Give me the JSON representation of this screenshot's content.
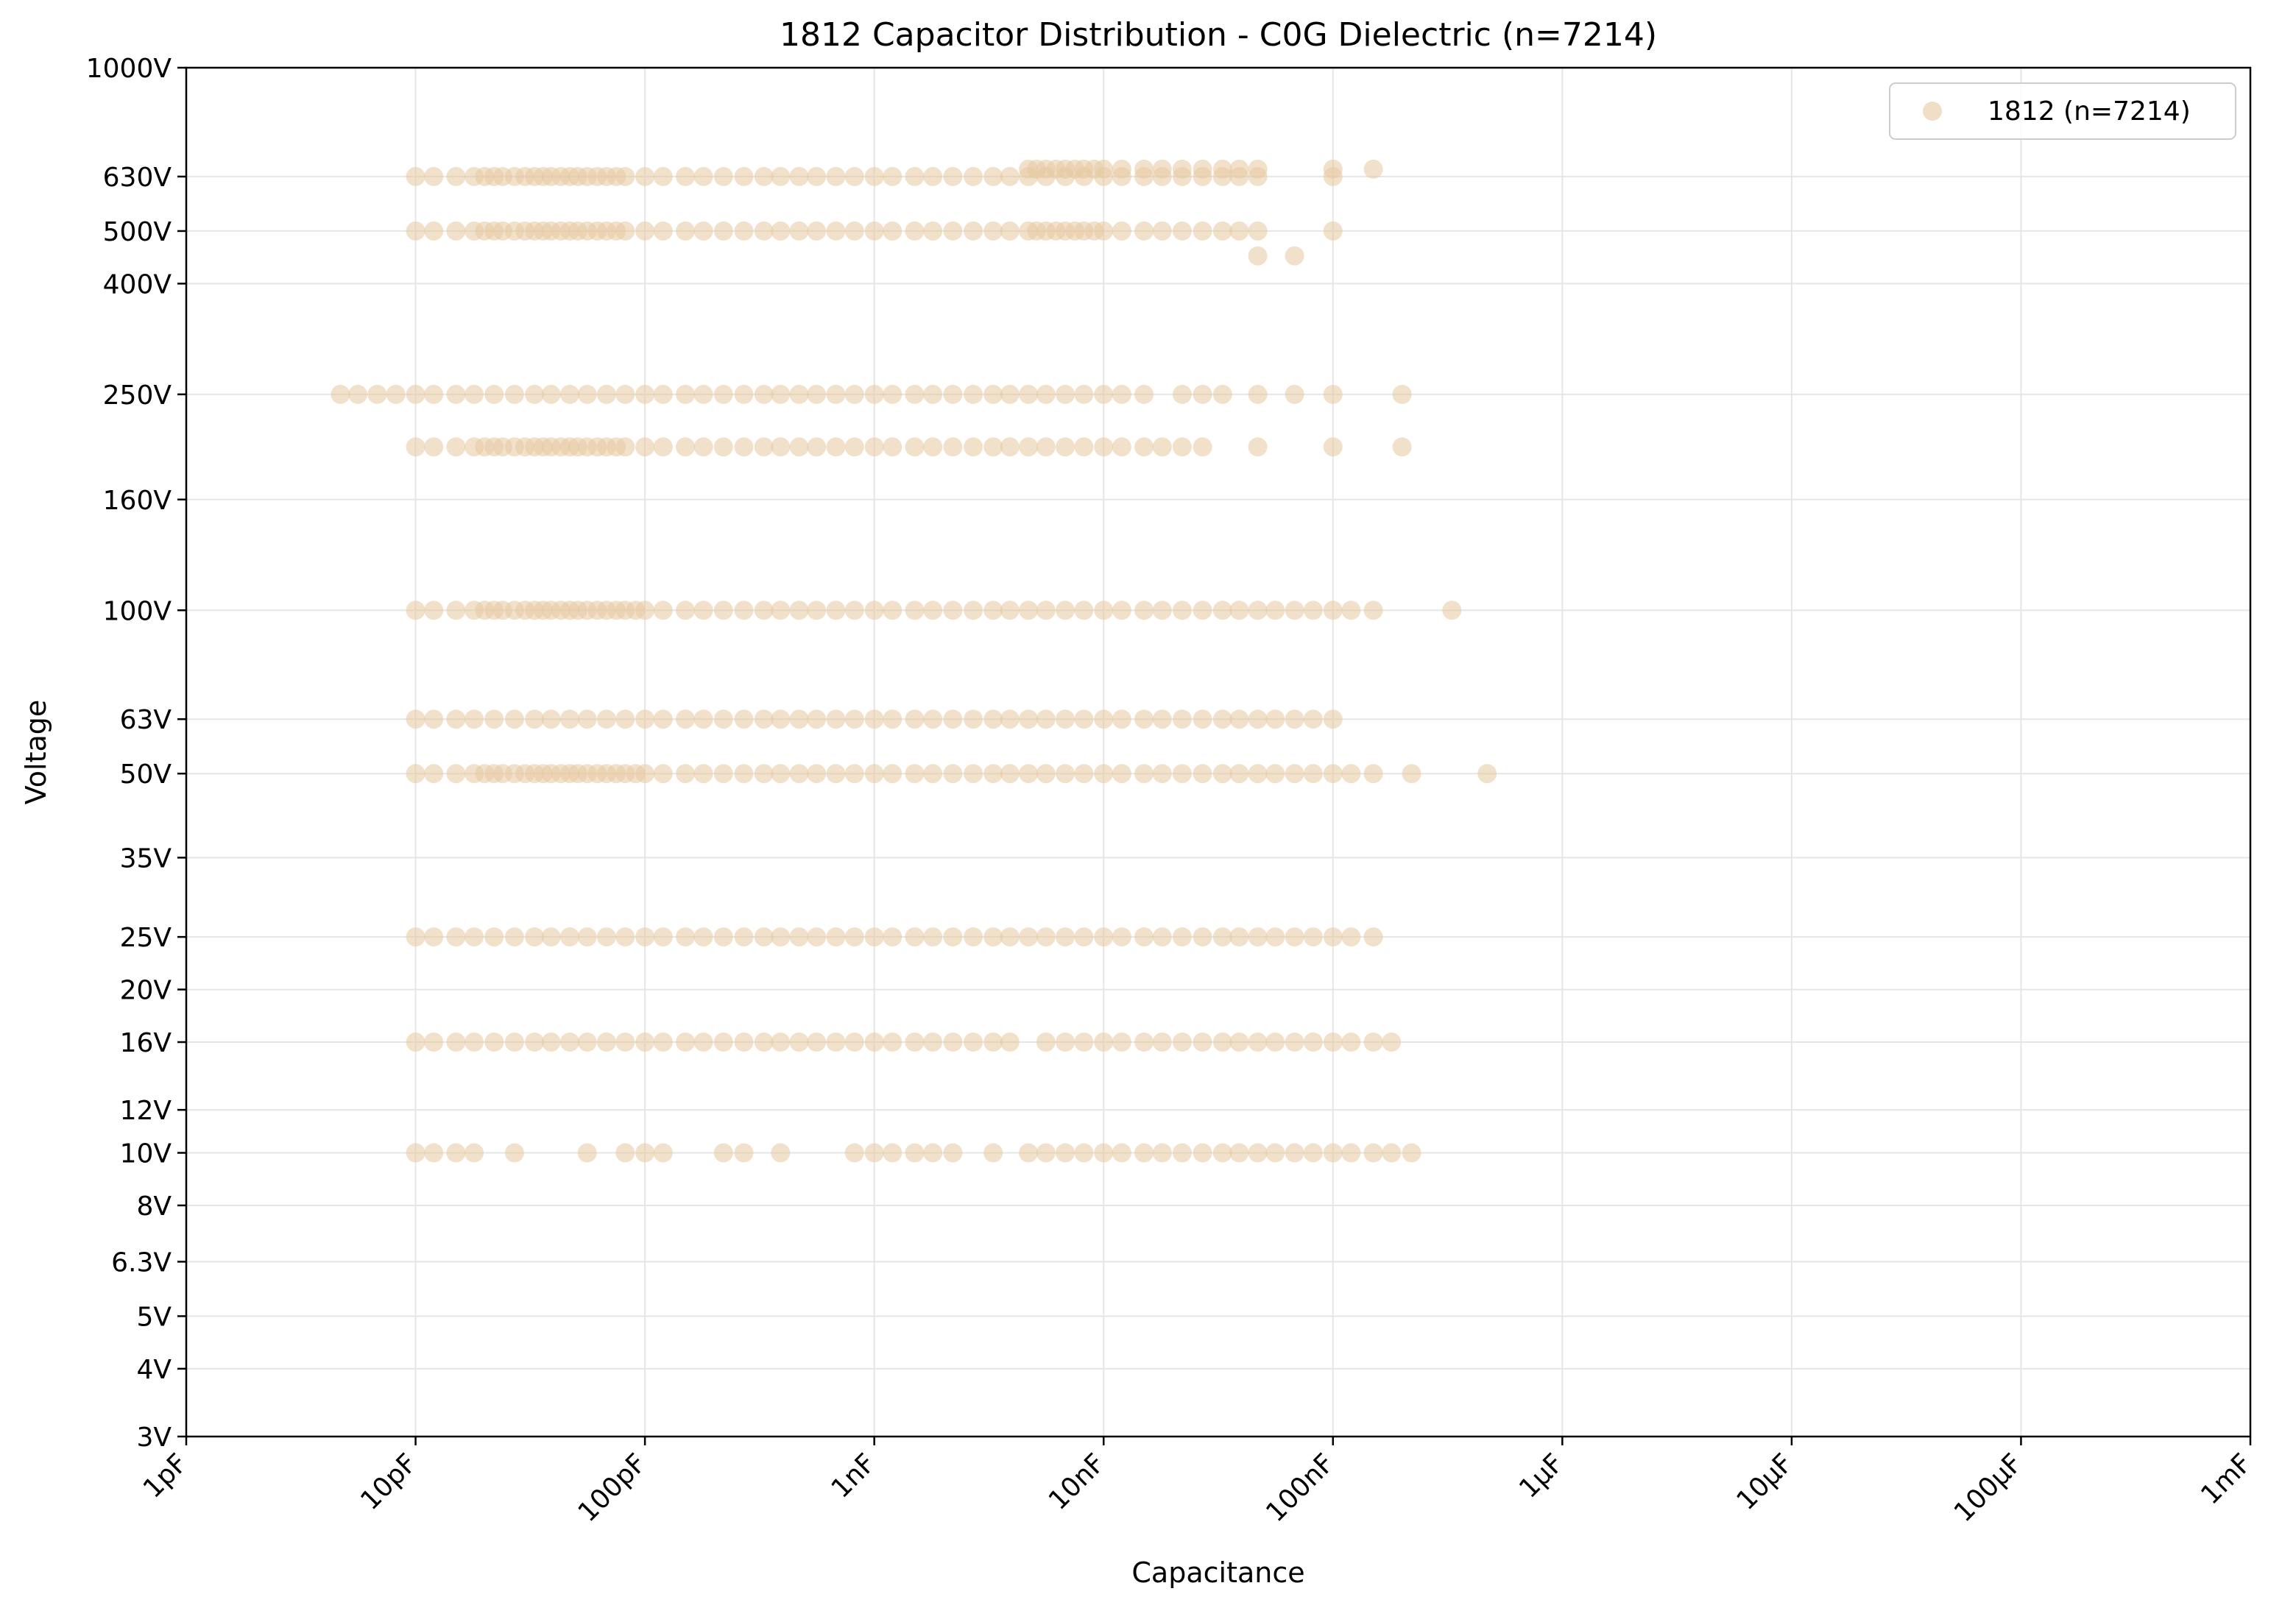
{
  "chart_data": {
    "type": "scatter",
    "title": "1812 Capacitor Distribution - C0G Dielectric (n=7214)",
    "xlabel": "Capacitance",
    "ylabel": "Voltage",
    "x_scale": "log",
    "y_scale": "log",
    "x_unit": "F",
    "xlim": [
      1e-12,
      0.001
    ],
    "ylim": [
      3,
      1000
    ],
    "grid": true,
    "legend_position": "top-right",
    "colors": {
      "series": "#e6c8a0",
      "point_edge": "#e6c8a0",
      "axis": "#000000",
      "grid": "#e6e6e6"
    },
    "x_ticks": [
      {
        "value": 1e-12,
        "label": "1pF"
      },
      {
        "value": 1e-11,
        "label": "10pF"
      },
      {
        "value": 1e-10,
        "label": "100pF"
      },
      {
        "value": 1e-09,
        "label": "1nF"
      },
      {
        "value": 1e-08,
        "label": "10nF"
      },
      {
        "value": 1e-07,
        "label": "100nF"
      },
      {
        "value": 1e-06,
        "label": "1µF"
      },
      {
        "value": 1e-05,
        "label": "10µF"
      },
      {
        "value": 0.0001,
        "label": "100µF"
      },
      {
        "value": 0.001,
        "label": "1mF"
      }
    ],
    "y_ticks": [
      {
        "value": 3,
        "label": "3V"
      },
      {
        "value": 4,
        "label": "4V"
      },
      {
        "value": 5,
        "label": "5V"
      },
      {
        "value": 6.3,
        "label": "6.3V"
      },
      {
        "value": 8,
        "label": "8V"
      },
      {
        "value": 10,
        "label": "10V"
      },
      {
        "value": 12,
        "label": "12V"
      },
      {
        "value": 16,
        "label": "16V"
      },
      {
        "value": 20,
        "label": "20V"
      },
      {
        "value": 25,
        "label": "25V"
      },
      {
        "value": 35,
        "label": "35V"
      },
      {
        "value": 50,
        "label": "50V"
      },
      {
        "value": 63,
        "label": "63V"
      },
      {
        "value": 100,
        "label": "100V"
      },
      {
        "value": 160,
        "label": "160V"
      },
      {
        "value": 250,
        "label": "250V"
      },
      {
        "value": 400,
        "label": "400V"
      },
      {
        "value": 500,
        "label": "500V"
      },
      {
        "value": 630,
        "label": "630V"
      },
      {
        "value": 1000,
        "label": "1000V"
      }
    ],
    "series": [
      {
        "name": "1812 (n=7214)",
        "n": 7214,
        "rows": [
          {
            "voltage": 10,
            "capacitance_pF": [
              10,
              12,
              15,
              18,
              27,
              56,
              82,
              100,
              120,
              220,
              270,
              390,
              820,
              1000,
              1200,
              1500,
              1800,
              2200,
              3300,
              4700,
              5600,
              6800,
              8200,
              10000,
              12000,
              15000,
              18000,
              22000,
              27000,
              33000,
              39000,
              47000,
              56000,
              68000,
              82000,
              100000,
              120000,
              150000,
              180000,
              220000
            ]
          },
          {
            "voltage": 16,
            "capacitance_pF": [
              10,
              12,
              15,
              18,
              22,
              27,
              33,
              39,
              47,
              56,
              68,
              82,
              100,
              120,
              150,
              180,
              220,
              270,
              330,
              390,
              470,
              560,
              680,
              820,
              1000,
              1200,
              1500,
              1800,
              2200,
              2700,
              3300,
              3900,
              5600,
              6800,
              8200,
              10000,
              12000,
              15000,
              18000,
              22000,
              27000,
              33000,
              39000,
              47000,
              56000,
              68000,
              82000,
              100000,
              120000,
              150000,
              180000
            ]
          },
          {
            "voltage": 25,
            "capacitance_pF": [
              10,
              12,
              15,
              18,
              22,
              27,
              33,
              39,
              47,
              56,
              68,
              82,
              100,
              120,
              150,
              180,
              220,
              270,
              330,
              390,
              470,
              560,
              680,
              820,
              1000,
              1200,
              1500,
              1800,
              2200,
              2700,
              3300,
              3900,
              4700,
              5600,
              6800,
              8200,
              10000,
              12000,
              15000,
              18000,
              22000,
              27000,
              33000,
              39000,
              47000,
              56000,
              68000,
              82000,
              100000,
              120000,
              150000
            ]
          },
          {
            "voltage": 50,
            "capacitance_pF": [
              10,
              12,
              15,
              18,
              20,
              22,
              24,
              27,
              30,
              33,
              36,
              39,
              43,
              47,
              51,
              56,
              62,
              68,
              75,
              82,
              91,
              100,
              120,
              150,
              180,
              220,
              270,
              330,
              390,
              470,
              560,
              680,
              820,
              1000,
              1200,
              1500,
              1800,
              2200,
              2700,
              3300,
              3900,
              4700,
              5600,
              6800,
              8200,
              10000,
              12000,
              15000,
              18000,
              22000,
              27000,
              33000,
              39000,
              47000,
              56000,
              68000,
              82000,
              100000,
              120000,
              150000,
              220000,
              470000
            ]
          },
          {
            "voltage": 63,
            "capacitance_pF": [
              10,
              12,
              15,
              18,
              22,
              27,
              33,
              39,
              47,
              56,
              68,
              82,
              100,
              120,
              150,
              180,
              220,
              270,
              330,
              390,
              470,
              560,
              680,
              820,
              1000,
              1200,
              1500,
              1800,
              2200,
              2700,
              3300,
              3900,
              4700,
              5600,
              6800,
              8200,
              10000,
              12000,
              15000,
              18000,
              22000,
              27000,
              33000,
              39000,
              47000,
              56000,
              68000,
              82000,
              100000
            ]
          },
          {
            "voltage": 100,
            "capacitance_pF": [
              10,
              12,
              15,
              18,
              20,
              22,
              24,
              27,
              30,
              33,
              36,
              39,
              43,
              47,
              51,
              56,
              62,
              68,
              75,
              82,
              91,
              100,
              120,
              150,
              180,
              220,
              270,
              330,
              390,
              470,
              560,
              680,
              820,
              1000,
              1200,
              1500,
              1800,
              2200,
              2700,
              3300,
              3900,
              4700,
              5600,
              6800,
              8200,
              10000,
              12000,
              15000,
              18000,
              22000,
              27000,
              33000,
              39000,
              47000,
              56000,
              68000,
              82000,
              100000,
              120000,
              150000,
              330000
            ]
          },
          {
            "voltage": 200,
            "capacitance_pF": [
              10,
              12,
              15,
              18,
              20,
              22,
              24,
              27,
              30,
              33,
              36,
              39,
              43,
              47,
              51,
              56,
              62,
              68,
              75,
              82,
              100,
              120,
              150,
              180,
              220,
              270,
              330,
              390,
              470,
              560,
              680,
              820,
              1000,
              1200,
              1500,
              1800,
              2200,
              2700,
              3300,
              3900,
              4700,
              5600,
              6800,
              8200,
              10000,
              12000,
              15000,
              18000,
              22000,
              27000,
              47000,
              100000,
              200000
            ]
          },
          {
            "voltage": 250,
            "capacitance_pF": [
              4.7,
              5.6,
              6.8,
              8.2,
              10,
              12,
              15,
              18,
              22,
              27,
              33,
              39,
              47,
              56,
              68,
              82,
              100,
              120,
              150,
              180,
              220,
              270,
              330,
              390,
              470,
              560,
              680,
              820,
              1000,
              1200,
              1500,
              1800,
              2200,
              2700,
              3300,
              3900,
              4700,
              5600,
              6800,
              8200,
              10000,
              12000,
              15000,
              22000,
              27000,
              33000,
              47000,
              68000,
              100000,
              200000
            ]
          },
          {
            "voltage": 450,
            "capacitance_pF": [
              47000,
              68000
            ]
          },
          {
            "voltage": 500,
            "capacitance_pF": [
              10,
              12,
              15,
              18,
              20,
              22,
              24,
              27,
              30,
              33,
              36,
              39,
              43,
              47,
              51,
              56,
              62,
              68,
              75,
              82,
              100,
              120,
              150,
              180,
              220,
              270,
              330,
              390,
              470,
              560,
              680,
              820,
              1000,
              1200,
              1500,
              1800,
              2200,
              2700,
              3300,
              3900,
              4700,
              5100,
              5600,
              6200,
              6800,
              7500,
              8200,
              9100,
              10000,
              12000,
              15000,
              18000,
              22000,
              27000,
              33000,
              39000,
              47000,
              100000
            ]
          },
          {
            "voltage": 630,
            "capacitance_pF": [
              10,
              12,
              15,
              18,
              20,
              22,
              24,
              27,
              30,
              33,
              36,
              39,
              43,
              47,
              51,
              56,
              62,
              68,
              75,
              82,
              100,
              120,
              150,
              180,
              220,
              270,
              330,
              390,
              470,
              560,
              680,
              820,
              1000,
              1200,
              1500,
              1800,
              2200,
              2700,
              3300,
              3900,
              4700,
              5600,
              6800,
              8200,
              10000,
              12000,
              15000,
              18000,
              22000,
              27000,
              33000,
              39000,
              47000,
              100000
            ]
          },
          {
            "voltage": 650,
            "capacitance_pF": [
              4700,
              5100,
              5600,
              6200,
              6800,
              7500,
              8200,
              9100,
              10000,
              12000,
              15000,
              18000,
              22000,
              27000,
              33000,
              39000,
              47000,
              100000,
              150000
            ]
          }
        ]
      }
    ]
  }
}
